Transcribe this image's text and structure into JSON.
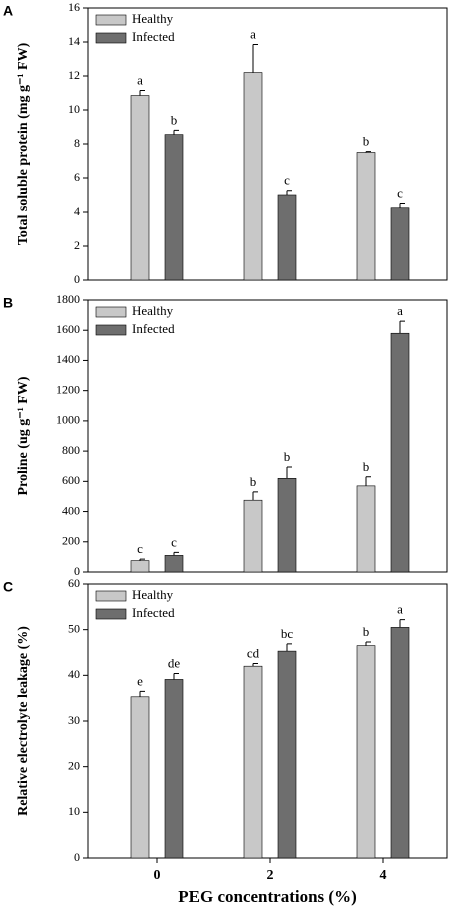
{
  "chart_data": [
    {
      "type": "bar",
      "panel_label": "A",
      "ylabel": "Total soluble protein (mg g⁻¹ FW)",
      "ylim": [
        0,
        16
      ],
      "yticks": [
        0,
        2,
        4,
        6,
        8,
        10,
        12,
        14,
        16
      ],
      "legend": "upper left",
      "series": [
        {
          "name": "Healthy",
          "color": "#c8c8c8",
          "values": [
            10.85,
            12.2,
            7.5
          ],
          "errors": [
            0.3,
            1.65,
            0.05
          ],
          "letters": [
            "a",
            "a",
            "b"
          ]
        },
        {
          "name": "Infected",
          "color": "#6e6e6e",
          "values": [
            8.55,
            5.0,
            4.25
          ],
          "errors": [
            0.25,
            0.25,
            0.25
          ],
          "letters": [
            "b",
            "c",
            "c"
          ]
        }
      ]
    },
    {
      "type": "bar",
      "panel_label": "B",
      "ylabel": "Proline (ug g⁻¹ FW)",
      "ylim": [
        0,
        1800
      ],
      "yticks": [
        0,
        200,
        400,
        600,
        800,
        1000,
        1200,
        1400,
        1600,
        1800
      ],
      "legend": "upper left",
      "series": [
        {
          "name": "Healthy",
          "color": "#c8c8c8",
          "values": [
            75,
            475,
            570
          ],
          "errors": [
            10,
            55,
            60
          ],
          "letters": [
            "c",
            "b",
            "b"
          ]
        },
        {
          "name": "Infected",
          "color": "#6e6e6e",
          "values": [
            110,
            620,
            1580
          ],
          "errors": [
            20,
            75,
            80
          ],
          "letters": [
            "c",
            "b",
            "a"
          ]
        }
      ]
    },
    {
      "type": "bar",
      "panel_label": "C",
      "ylabel": "Relative electrolyte leakage (%)",
      "xlabel": "PEG concentrations (%)",
      "categories": [
        "0",
        "2",
        "4"
      ],
      "ylim": [
        0,
        60
      ],
      "yticks": [
        0,
        10,
        20,
        30,
        40,
        50,
        60
      ],
      "legend": "upper left",
      "series": [
        {
          "name": "Healthy",
          "color": "#c8c8c8",
          "values": [
            35.3,
            42,
            46.5
          ],
          "errors": [
            1.2,
            0.6,
            0.8
          ],
          "letters": [
            "e",
            "cd",
            "b"
          ]
        },
        {
          "name": "Infected",
          "color": "#6e6e6e",
          "values": [
            39.1,
            45.3,
            50.5
          ],
          "errors": [
            1.3,
            1.6,
            1.7
          ],
          "letters": [
            "de",
            "bc",
            "a"
          ]
        }
      ]
    }
  ]
}
